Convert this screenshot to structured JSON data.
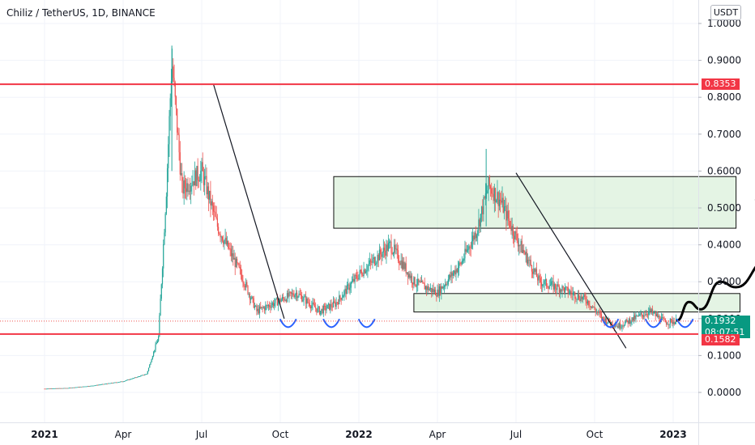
{
  "header": {
    "ticker": "Chiliz / TetherUS, 1D, BINANCE",
    "currency": "USDT"
  },
  "chart_data": {
    "type": "candlestick",
    "title": "Chiliz / TetherUS, 1D, BINANCE",
    "y_ticks": [
      "1.0000",
      "0.9000",
      "0.8000",
      "0.7000",
      "0.6000",
      "0.5000",
      "0.4000",
      "0.3000",
      "0.2000",
      "0.1000",
      "0.0000"
    ],
    "x_ticks": [
      {
        "label": "2021",
        "bold": true
      },
      {
        "label": "Apr",
        "bold": false
      },
      {
        "label": "Jul",
        "bold": false
      },
      {
        "label": "Oct",
        "bold": false
      },
      {
        "label": "2022",
        "bold": true
      },
      {
        "label": "Apr",
        "bold": false
      },
      {
        "label": "Jul",
        "bold": false
      },
      {
        "label": "Oct",
        "bold": false
      },
      {
        "label": "2023",
        "bold": true
      }
    ],
    "ylim": [
      -0.06,
      1.03
    ],
    "horizontal_levels": [
      {
        "label": "0.8353",
        "value": 0.8353,
        "color": "#f23645"
      },
      {
        "label": "0.1582",
        "value": 0.1582,
        "color": "#f23645"
      }
    ],
    "last_price": {
      "label": "0.1932",
      "value": 0.1932,
      "countdown": "08:07:51",
      "color": "#089981"
    },
    "price_path": [
      [
        0,
        0.01
      ],
      [
        0.3,
        0.012
      ],
      [
        0.6,
        0.018
      ],
      [
        1.0,
        0.03
      ],
      [
        1.3,
        0.05
      ],
      [
        1.45,
        0.15
      ],
      [
        1.55,
        0.55
      ],
      [
        1.62,
        0.9
      ],
      [
        1.75,
        0.55
      ],
      [
        2.0,
        0.6
      ],
      [
        2.2,
        0.45
      ],
      [
        2.5,
        0.32
      ],
      [
        2.7,
        0.22
      ],
      [
        3.0,
        0.25
      ],
      [
        3.2,
        0.27
      ],
      [
        3.5,
        0.22
      ],
      [
        3.7,
        0.24
      ],
      [
        4.0,
        0.32
      ],
      [
        4.4,
        0.4
      ],
      [
        4.7,
        0.3
      ],
      [
        5.0,
        0.27
      ],
      [
        5.3,
        0.35
      ],
      [
        5.5,
        0.44
      ],
      [
        5.65,
        0.56
      ],
      [
        5.8,
        0.52
      ],
      [
        6.0,
        0.42
      ],
      [
        6.3,
        0.3
      ],
      [
        6.6,
        0.28
      ],
      [
        6.9,
        0.25
      ],
      [
        7.1,
        0.2
      ],
      [
        7.3,
        0.18
      ],
      [
        7.5,
        0.2
      ],
      [
        7.7,
        0.22
      ],
      [
        7.9,
        0.19
      ],
      [
        8.05,
        0.1932
      ]
    ],
    "annotations": {
      "boxes": [
        {
          "x1": 3.68,
          "x2": 8.8,
          "y1": 0.445,
          "y2": 0.585
        },
        {
          "x1": 4.7,
          "x2": 8.85,
          "y1": 0.218,
          "y2": 0.268
        }
      ],
      "trendlines": [
        {
          "x1": 2.15,
          "y1": 0.835,
          "x2": 3.05,
          "y2": 0.2
        },
        {
          "x1": 6.0,
          "y1": 0.595,
          "x2": 7.4,
          "y2": 0.12
        }
      ],
      "projection": [
        [
          8.05,
          0.195
        ],
        [
          8.2,
          0.245
        ],
        [
          8.35,
          0.225
        ],
        [
          8.6,
          0.3
        ],
        [
          8.8,
          0.285
        ],
        [
          9.2,
          0.36
        ],
        [
          9.4,
          0.455
        ]
      ],
      "bottoms": [
        3.1,
        3.65,
        4.1,
        7.2,
        7.75,
        8.15
      ]
    }
  }
}
